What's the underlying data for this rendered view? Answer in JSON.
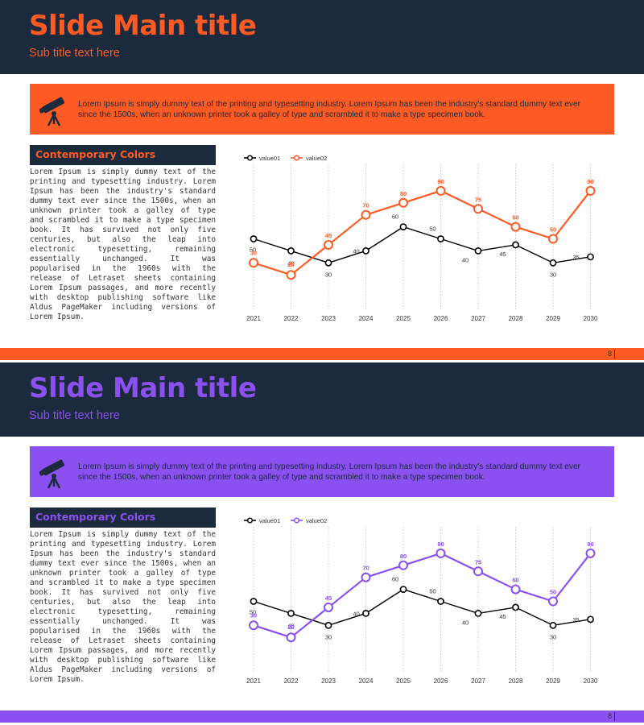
{
  "theme_colors": [
    "#fd5b23",
    "#8b50f0"
  ],
  "dark_color": "#1b2a3d",
  "slides": [
    {
      "title": "Slide Main title",
      "subtitle": "Sub title text here",
      "banner_text": "Lorem Ipsum is simply dummy text of the printing and typesetting industry. Lorem Ipsum has been the industry's standard dummy text ever since the 1500s, when an unknown printer took a galley of type and scrambled it to make a type specimen book.",
      "banner_icon": "telescope-icon",
      "section_title": "Contemporary Colors",
      "body": "Lorem Ipsum is simply dummy text of the printing and typesetting industry. Lorem Ipsum has been the industry's standard dummy text ever since the 1500s, when an unknown printer took a galley of type and scrambled it to make a type specimen book. It has survived not only five centuries, but also the leap into electronic typesetting, remaining essentially unchanged. It was popularised in the 1960s with the release of Letraset sheets containing Lorem Ipsum passages, and more recently with desktop publishing software like Aldus PageMaker including versions of Lorem Ipsum.",
      "page_number": "8"
    },
    {
      "title": "Slide Main title",
      "subtitle": "Sub title text here",
      "banner_text": "Lorem Ipsum is simply dummy text of the printing and typesetting industry. Lorem Ipsum has been the industry's standard dummy text ever since the 1500s, when an unknown printer took a galley of type and scrambled it to make a type specimen book.",
      "banner_icon": "telescope-icon",
      "section_title": "Contemporary Colors",
      "body": "Lorem Ipsum is simply dummy text of the printing and typesetting industry. Lorem Ipsum has been the industry's standard dummy text ever since the 1500s, when an unknown printer took a galley of type and scrambled it to make a type specimen book. It has survived not only five centuries, but also the leap into electronic typesetting, remaining essentially unchanged. It was popularised in the 1960s with the release of Letraset sheets containing Lorem Ipsum passages, and more recently with desktop publishing software like Aldus PageMaker including versions of Lorem Ipsum.",
      "page_number": "8"
    }
  ],
  "chart_data": [
    {
      "type": "line",
      "x": [
        "2021",
        "2022",
        "2023",
        "2024",
        "2025",
        "2026",
        "2027",
        "2028",
        "2029",
        "2030"
      ],
      "series": [
        {
          "name": "value01",
          "values": [
            50,
            40,
            30,
            40,
            60,
            50,
            40,
            45,
            30,
            35
          ],
          "color": "#000000"
        },
        {
          "name": "value02",
          "values": [
            30,
            20,
            45,
            70,
            80,
            90,
            75,
            60,
            50,
            90
          ],
          "color": "#fd5b23"
        }
      ],
      "legend": "top-left",
      "grid": "vertical-dotted",
      "ylim": [
        0,
        100
      ]
    },
    {
      "type": "line",
      "x": [
        "2021",
        "2022",
        "2023",
        "2024",
        "2025",
        "2026",
        "2027",
        "2028",
        "2029",
        "2030"
      ],
      "series": [
        {
          "name": "value01",
          "values": [
            50,
            40,
            30,
            40,
            60,
            50,
            40,
            45,
            30,
            35
          ],
          "color": "#000000"
        },
        {
          "name": "value02",
          "values": [
            30,
            20,
            45,
            70,
            80,
            90,
            75,
            60,
            50,
            90
          ],
          "color": "#8b50f0"
        }
      ],
      "legend": "top-left",
      "grid": "vertical-dotted",
      "ylim": [
        0,
        100
      ]
    }
  ]
}
